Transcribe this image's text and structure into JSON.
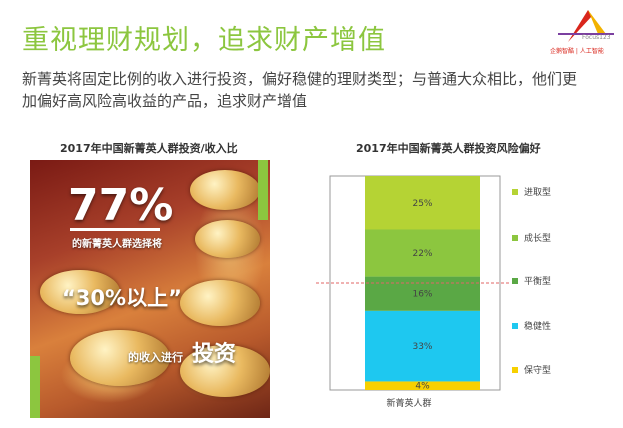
{
  "header": {
    "title": "重视理财规划，追求财产增值",
    "subtitle": "新菁英将固定比例的收入进行投资，偏好稳健的理财类型；与普通大众相比，他们更加偏好高风险高收益的产品，追求财产增值"
  },
  "logo": {
    "focus_text": "Focus123",
    "brand_text": "企鹅智酷 | 人工智能"
  },
  "left_panel": {
    "title": "2017年中国新菁英人群投资/收入比",
    "big_number": "77%",
    "line1": "的新菁英人群选择将",
    "line2": "“30%以上”",
    "line3_small": "的收入进行",
    "line3_big": "投资"
  },
  "colors": {
    "accent_green": "#8cc63f",
    "dashed_line": "#e06666"
  },
  "chart_data": {
    "type": "bar",
    "stacked": true,
    "title": "2017年中国新菁英人群投资风险偏好",
    "categories": [
      "新菁英人群"
    ],
    "ylim": [
      0,
      100
    ],
    "grid": false,
    "legend_position": "right",
    "series": [
      {
        "name": "保守型",
        "values": [
          4
        ],
        "label": "4%",
        "color": "#f7d000"
      },
      {
        "name": "稳健性",
        "values": [
          33
        ],
        "label": "33%",
        "color": "#1ec8f0"
      },
      {
        "name": "平衡型",
        "values": [
          16
        ],
        "label": "16%",
        "color": "#5aa845"
      },
      {
        "name": "成长型",
        "values": [
          22
        ],
        "label": "22%",
        "color": "#8cc63f"
      },
      {
        "name": "进取型",
        "values": [
          25
        ],
        "label": "25%",
        "color": "#b5d334"
      }
    ],
    "legend_order": [
      "进取型",
      "成长型",
      "平衡型",
      "稳健性",
      "保守型"
    ],
    "reference_line": {
      "value": 50,
      "style": "dashed"
    }
  }
}
